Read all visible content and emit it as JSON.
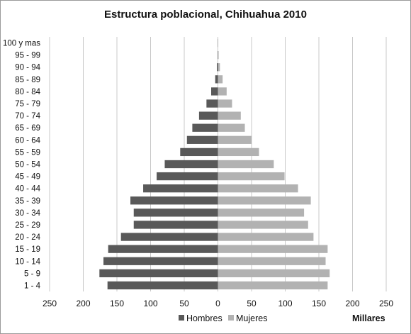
{
  "chart_data": {
    "type": "bar",
    "orientation": "horizontal",
    "layout": "population-pyramid",
    "title": "Estructura poblacional, Chihuahua 2010",
    "unit_label": "Millares",
    "categories": [
      "1 - 4",
      "5 - 9",
      "10 - 14",
      "15 - 19",
      "20 - 24",
      "25 - 29",
      "30 - 34",
      "35 - 39",
      "40 - 44",
      "45 - 49",
      "50 - 54",
      "55 - 59",
      "60 - 64",
      "65 - 69",
      "70 - 74",
      "75 - 79",
      "80 - 84",
      "85 - 89",
      "90 - 94",
      "95 - 99",
      "100 y mas"
    ],
    "series": [
      {
        "name": "Hombres",
        "color": "#595959",
        "values": [
          164,
          176,
          170,
          163,
          144,
          125,
          125,
          130,
          111,
          91,
          79,
          56,
          46,
          38,
          28,
          17,
          10,
          4,
          1.5,
          0.5,
          0.2
        ]
      },
      {
        "name": "Mujeres",
        "color": "#b2b2b2",
        "values": [
          163,
          166,
          160,
          163,
          142,
          134,
          128,
          138,
          119,
          99,
          83,
          61,
          50,
          40,
          34,
          21,
          13,
          7,
          3,
          1,
          0.3
        ]
      }
    ],
    "xlim": [
      -250,
      250
    ],
    "xticks": [
      -250,
      -200,
      -150,
      -100,
      -50,
      0,
      50,
      100,
      150,
      200,
      250
    ],
    "xtick_labels": [
      "250",
      "200",
      "150",
      "100",
      "50",
      "0",
      "50",
      "100",
      "150",
      "200",
      "250"
    ],
    "grid": true,
    "legend_position": "bottom"
  }
}
